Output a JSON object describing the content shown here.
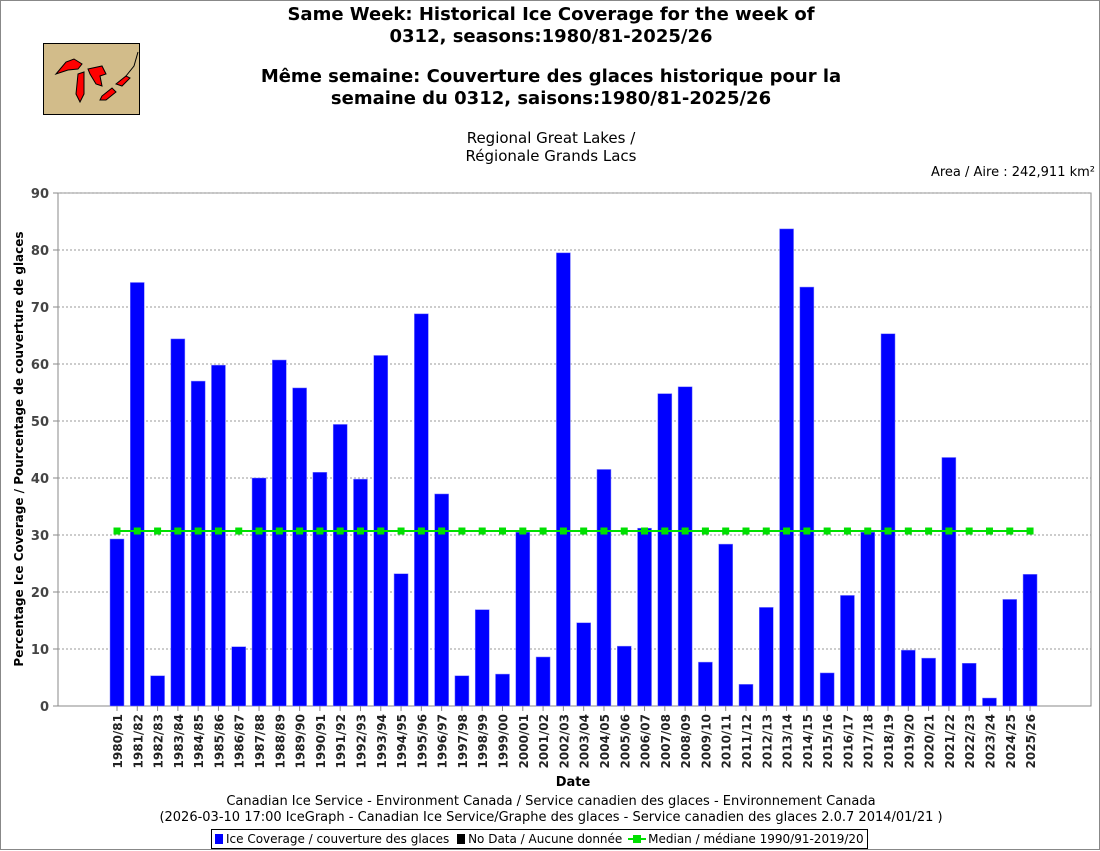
{
  "header": {
    "title_en_1": "Same Week: Historical Ice Coverage for the week of",
    "title_en_2": "0312, seasons:1980/81-2025/26",
    "title_fr_1": "Même semaine: Couverture des glaces historique pour la",
    "title_fr_2": "semaine du 0312, saisons:1980/81-2025/26",
    "region_1": "Regional Great Lakes /",
    "region_2": "Régionale Grands Lacs",
    "area": "Area / Aire : 242,911 km²"
  },
  "footer": {
    "line1": "Canadian Ice Service - Environment Canada / Service canadien des glaces - Environnement Canada",
    "line2": "(2026-03-10 17:00 IceGraph - Canadian Ice Service/Graphe des glaces - Service canadien des glaces 2.0.7 2014/01/21 )"
  },
  "legend": {
    "coverage": "Ice Coverage / couverture des glaces",
    "nodata": "No Data / Aucune donnée",
    "median": "Median / médiane 1990/91-2019/20"
  },
  "colors": {
    "bar": "#0000ff",
    "median": "#00e000",
    "nodata": "#000000"
  },
  "chart_data": {
    "type": "bar",
    "xlabel": "Date",
    "ylabel": "Percentage Ice Coverage / Pourcentage de couverture de glaces",
    "ylim": [
      0,
      90
    ],
    "yticks": [
      0,
      10,
      20,
      30,
      40,
      50,
      60,
      70,
      80,
      90
    ],
    "grid": true,
    "legend_placement": "bottom",
    "categories": [
      "1980/81",
      "1981/82",
      "1982/83",
      "1983/84",
      "1984/85",
      "1985/86",
      "1986/87",
      "1987/88",
      "1988/89",
      "1989/90",
      "1990/91",
      "1991/92",
      "1992/93",
      "1993/94",
      "1994/95",
      "1995/96",
      "1996/97",
      "1997/98",
      "1998/99",
      "1999/00",
      "2000/01",
      "2001/02",
      "2002/03",
      "2003/04",
      "2004/05",
      "2005/06",
      "2006/07",
      "2007/08",
      "2008/09",
      "2009/10",
      "2010/11",
      "2011/12",
      "2012/13",
      "2013/14",
      "2014/15",
      "2015/16",
      "2016/17",
      "2017/18",
      "2018/19",
      "2019/20",
      "2020/21",
      "2021/22",
      "2022/23",
      "2023/24",
      "2024/25",
      "2025/26"
    ],
    "values": [
      29.3,
      74.3,
      5.3,
      64.4,
      57.0,
      59.8,
      10.4,
      40.0,
      60.7,
      55.8,
      41.0,
      49.4,
      39.8,
      61.5,
      23.2,
      68.8,
      37.2,
      5.3,
      16.9,
      5.6,
      30.5,
      8.6,
      79.5,
      14.6,
      41.5,
      10.5,
      31.2,
      54.8,
      56.0,
      7.7,
      28.4,
      3.8,
      17.3,
      83.7,
      73.5,
      5.8,
      19.4,
      30.5,
      65.3,
      9.8,
      8.4,
      43.6,
      7.5,
      1.4,
      18.7,
      23.1
    ],
    "median": 30.7
  }
}
